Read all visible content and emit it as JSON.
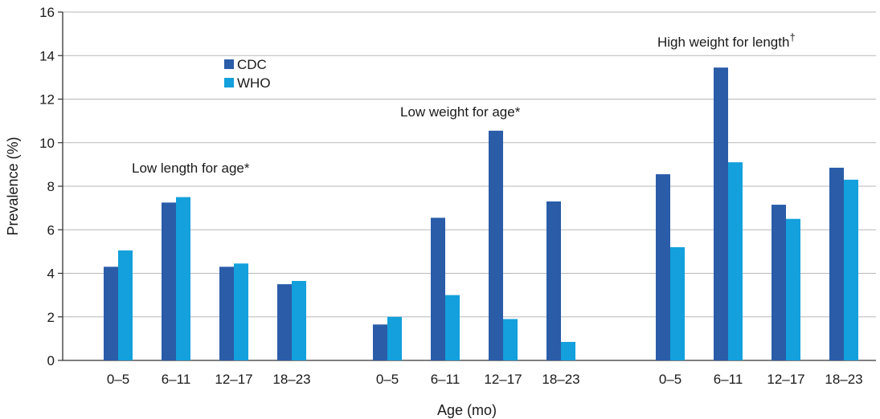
{
  "chart_data": {
    "type": "bar",
    "xlabel": "Age (mo)",
    "ylabel": "Prevalence (%)",
    "ylim": [
      0,
      16
    ],
    "yticks": [
      0,
      2,
      4,
      6,
      8,
      10,
      12,
      14,
      16
    ],
    "grid": true,
    "legend_position": "upper-left",
    "series": [
      {
        "name": "CDC",
        "color": "#2a5ca8"
      },
      {
        "name": "WHO",
        "color": "#13a0dc"
      }
    ],
    "groups": [
      {
        "label": "Low length for age*",
        "categories": [
          "0–5",
          "6–11",
          "12–17",
          "18–23"
        ],
        "values": {
          "CDC": [
            4.3,
            7.25,
            4.3,
            3.5
          ],
          "WHO": [
            5.05,
            7.5,
            4.45,
            3.65
          ]
        }
      },
      {
        "label": "Low weight for age*",
        "categories": [
          "0–5",
          "6–11",
          "12–17",
          "18–23"
        ],
        "values": {
          "CDC": [
            1.65,
            6.55,
            10.55,
            7.3
          ],
          "WHO": [
            2.0,
            3.0,
            1.9,
            0.85
          ]
        }
      },
      {
        "label": "High weight for length",
        "label_sup": "†",
        "categories": [
          "0–5",
          "6–11",
          "12–17",
          "18–23"
        ],
        "values": {
          "CDC": [
            8.55,
            13.45,
            7.15,
            8.85
          ],
          "WHO": [
            5.2,
            9.1,
            6.5,
            8.3
          ]
        }
      }
    ]
  }
}
